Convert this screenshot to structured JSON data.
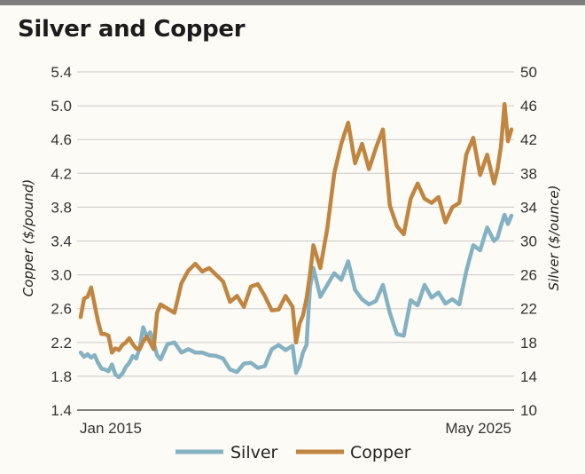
{
  "chart_data": {
    "type": "line",
    "title": "Silver and Copper",
    "x_start_label": "Jan 2015",
    "x_end_label": "May 2025",
    "y_left": {
      "label": "Copper ($/pound)",
      "range": [
        1.4,
        5.4
      ],
      "ticks": [
        "1.4",
        "1.8",
        "2.2",
        "2.6",
        "3.0",
        "3.4",
        "3.8",
        "4.2",
        "4.6",
        "5.0",
        "5.4"
      ]
    },
    "y_right": {
      "label": "Silver ($/ounce)",
      "range": [
        10,
        50
      ],
      "ticks": [
        "10",
        "14",
        "18",
        "22",
        "26",
        "30",
        "34",
        "38",
        "42",
        "46",
        "50"
      ]
    },
    "grid": true,
    "legend_position": "bottom",
    "series": [
      {
        "name": "Silver",
        "color": "#85b2c2",
        "axis": "right",
        "x": [
          "2015-01",
          "2015-02",
          "2015-03",
          "2015-04",
          "2015-05",
          "2015-06",
          "2015-07",
          "2015-08",
          "2015-09",
          "2015-10",
          "2015-11",
          "2015-12",
          "2016-01",
          "2016-02",
          "2016-03",
          "2016-04",
          "2016-05",
          "2016-06",
          "2016-07",
          "2016-08",
          "2016-09",
          "2016-10",
          "2016-11",
          "2016-12",
          "2017-02",
          "2017-04",
          "2017-06",
          "2017-08",
          "2017-10",
          "2017-12",
          "2018-02",
          "2018-04",
          "2018-06",
          "2018-08",
          "2018-10",
          "2018-12",
          "2019-02",
          "2019-04",
          "2019-06",
          "2019-08",
          "2019-10",
          "2019-12",
          "2020-02",
          "2020-03",
          "2020-04",
          "2020-05",
          "2020-06",
          "2020-07",
          "2020-08",
          "2020-10",
          "2020-12",
          "2021-02",
          "2021-04",
          "2021-06",
          "2021-08",
          "2021-10",
          "2021-12",
          "2022-02",
          "2022-04",
          "2022-06",
          "2022-08",
          "2022-10",
          "2022-12",
          "2023-02",
          "2023-04",
          "2023-06",
          "2023-08",
          "2023-10",
          "2023-12",
          "2024-02",
          "2024-04",
          "2024-06",
          "2024-08",
          "2024-10",
          "2024-12",
          "2025-01",
          "2025-02",
          "2025-03",
          "2025-04",
          "2025-05"
        ],
        "values": [
          16.8,
          16.3,
          16.6,
          16.2,
          16.5,
          15.6,
          14.9,
          14.8,
          14.6,
          15.4,
          14.2,
          13.9,
          14.3,
          15.1,
          15.6,
          16.4,
          16.1,
          17.4,
          19.8,
          18.7,
          19.2,
          18.0,
          16.5,
          16.0,
          17.8,
          18.0,
          16.8,
          17.2,
          16.8,
          16.8,
          16.5,
          16.4,
          16.1,
          14.8,
          14.5,
          15.5,
          15.6,
          15.0,
          15.2,
          17.2,
          17.7,
          17.1,
          17.6,
          14.4,
          15.2,
          16.8,
          17.7,
          24.5,
          26.8,
          23.4,
          24.8,
          26.2,
          25.4,
          27.6,
          24.2,
          23.1,
          22.5,
          22.9,
          24.8,
          21.5,
          19.0,
          18.8,
          23.0,
          22.4,
          24.8,
          23.3,
          23.9,
          22.6,
          23.1,
          22.5,
          26.4,
          29.5,
          28.9,
          31.6,
          30.0,
          30.4,
          31.8,
          33.1,
          32.0,
          33.0
        ]
      },
      {
        "name": "Copper",
        "color": "#c08540",
        "axis": "left",
        "x": [
          "2015-01",
          "2015-02",
          "2015-03",
          "2015-04",
          "2015-05",
          "2015-06",
          "2015-07",
          "2015-08",
          "2015-09",
          "2015-10",
          "2015-11",
          "2015-12",
          "2016-01",
          "2016-02",
          "2016-03",
          "2016-04",
          "2016-05",
          "2016-06",
          "2016-07",
          "2016-08",
          "2016-09",
          "2016-10",
          "2016-11",
          "2016-12",
          "2017-02",
          "2017-04",
          "2017-06",
          "2017-08",
          "2017-10",
          "2017-12",
          "2018-02",
          "2018-04",
          "2018-06",
          "2018-08",
          "2018-10",
          "2018-12",
          "2019-02",
          "2019-04",
          "2019-06",
          "2019-08",
          "2019-10",
          "2019-12",
          "2020-02",
          "2020-03",
          "2020-04",
          "2020-05",
          "2020-06",
          "2020-07",
          "2020-08",
          "2020-10",
          "2020-12",
          "2021-02",
          "2021-04",
          "2021-06",
          "2021-08",
          "2021-10",
          "2021-12",
          "2022-02",
          "2022-04",
          "2022-06",
          "2022-08",
          "2022-10",
          "2022-12",
          "2023-02",
          "2023-04",
          "2023-06",
          "2023-08",
          "2023-10",
          "2023-12",
          "2024-02",
          "2024-04",
          "2024-06",
          "2024-08",
          "2024-10",
          "2024-12",
          "2025-01",
          "2025-02",
          "2025-03",
          "2025-04",
          "2025-05"
        ],
        "values": [
          2.5,
          2.72,
          2.74,
          2.85,
          2.65,
          2.45,
          2.3,
          2.3,
          2.28,
          2.08,
          2.13,
          2.11,
          2.17,
          2.2,
          2.25,
          2.18,
          2.13,
          2.12,
          2.21,
          2.27,
          2.2,
          2.12,
          2.55,
          2.65,
          2.6,
          2.55,
          2.9,
          3.05,
          3.13,
          3.04,
          3.08,
          3.0,
          2.92,
          2.68,
          2.75,
          2.62,
          2.86,
          2.89,
          2.75,
          2.58,
          2.59,
          2.75,
          2.62,
          2.2,
          2.42,
          2.52,
          2.72,
          3.0,
          3.35,
          3.08,
          3.55,
          4.2,
          4.55,
          4.8,
          4.32,
          4.55,
          4.25,
          4.5,
          4.72,
          3.82,
          3.58,
          3.48,
          3.9,
          4.08,
          3.9,
          3.85,
          3.92,
          3.62,
          3.8,
          3.85,
          4.42,
          4.62,
          4.18,
          4.42,
          4.08,
          4.25,
          4.52,
          5.02,
          4.58,
          4.72
        ]
      }
    ]
  }
}
